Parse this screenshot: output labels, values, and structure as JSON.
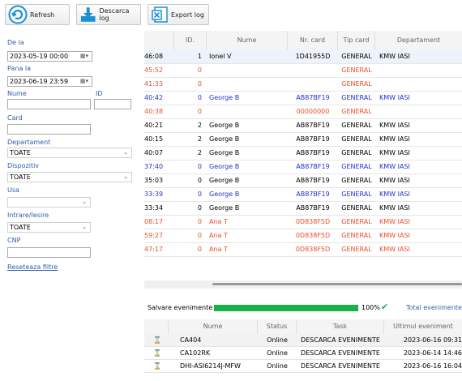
{
  "toolbar": {
    "refresh_label": "Refresh",
    "descarca_label": "Descarca log",
    "export_label": "Export log"
  },
  "filters": {
    "de_la_label": "De la",
    "de_la_value": "2023-05-19 00:00",
    "pana_la_label": "Pana la",
    "pana_la_value": "2023-06-19 23:59",
    "nume_label": "Nume",
    "nume_value": "",
    "id_label": "ID",
    "id_value": "",
    "card_label": "Card",
    "card_value": "",
    "departament_label": "Departament",
    "departament_value": "TOATE",
    "dispozitiv_label": "Dispozitiv",
    "dispozitiv_value": "TOATE",
    "usa_label": "Usa",
    "usa_value": "",
    "intrare_label": "Intrare/Iesire",
    "intrare_value": "TOATE",
    "cnp_label": "CNP",
    "cnp_value": "",
    "reset_label": "Reseteaza filtre"
  },
  "events_table": {
    "headers": [
      "",
      "ID.",
      "Nume",
      "Nr. card",
      "Tip card",
      "Departament"
    ],
    "rows": [
      {
        "time": "46:08",
        "id": "1",
        "name": "Ionel V",
        "card": "1D41955D",
        "type": "GENERAL",
        "dept": "KMW IASI",
        "color": "#000000"
      },
      {
        "time": "45:52",
        "id": "0",
        "name": "",
        "card": "",
        "type": "GENERAL",
        "dept": "",
        "color": "#e8502a"
      },
      {
        "time": "41:33",
        "id": "0",
        "name": "",
        "card": "",
        "type": "GENERAL",
        "dept": "",
        "color": "#e8502a"
      },
      {
        "time": "40:42",
        "id": "0",
        "name": "George B",
        "card": "AB87BF19",
        "type": "GENERAL",
        "dept": "KMW IASI",
        "color": "#2233cc"
      },
      {
        "time": "40:38",
        "id": "0",
        "name": "",
        "card": "00000000",
        "type": "GENERAL",
        "dept": "",
        "color": "#e8502a"
      },
      {
        "time": "40:21",
        "id": "2",
        "name": "George B",
        "card": "AB87BF19",
        "type": "GENERAL",
        "dept": "KMW IASI",
        "color": "#000000"
      },
      {
        "time": "40:15",
        "id": "2",
        "name": "George B",
        "card": "AB87BF19",
        "type": "GENERAL",
        "dept": "KMW IASI",
        "color": "#000000"
      },
      {
        "time": "40:07",
        "id": "2",
        "name": "George B",
        "card": "AB87BF19",
        "type": "GENERAL",
        "dept": "KMW IASI",
        "color": "#000000"
      },
      {
        "time": "37:40",
        "id": "0",
        "name": "George B",
        "card": "AB87BF19",
        "type": "GENERAL",
        "dept": "KMW IASI",
        "color": "#2233cc"
      },
      {
        "time": "35:03",
        "id": "0",
        "name": "George B",
        "card": "AB87BF19",
        "type": "GENERAL",
        "dept": "KMW IASI",
        "color": "#000000"
      },
      {
        "time": "33:39",
        "id": "0",
        "name": "George B",
        "card": "AB87BF19",
        "type": "GENERAL",
        "dept": "KMW IASI",
        "color": "#2233cc"
      },
      {
        "time": "33:34",
        "id": "0",
        "name": "George B",
        "card": "AB87BF19",
        "type": "GENERAL",
        "dept": "KMW IASI",
        "color": "#000000"
      },
      {
        "time": "08:17",
        "id": "0",
        "name": "Ana T",
        "card": "0D838F5D",
        "type": "GENERAL",
        "dept": "KMW IASI",
        "color": "#e8502a"
      },
      {
        "time": "59:27",
        "id": "0",
        "name": "Ana T",
        "card": "0D838F5D",
        "type": "GENERAL",
        "dept": "KMW IASI",
        "color": "#e8502a"
      },
      {
        "time": "47:17",
        "id": "0",
        "name": "Ana T",
        "card": "0D838F5D",
        "type": "GENERAL",
        "dept": "KMW IASI",
        "color": "#e8502a"
      }
    ]
  },
  "progress": {
    "label": "Salvare evenimente",
    "percent_text": "100%",
    "percent": 100,
    "total_label": "Total evenimente d",
    "bar_color": "#17b24a"
  },
  "devices_table": {
    "headers": [
      "",
      "Nume",
      "Status",
      "Task",
      "Ultimul eveniment"
    ],
    "rows": [
      {
        "name": "CA404",
        "status": "Online",
        "task": "DESCARCA EVENIMENTE",
        "last": "2023-06-16 09:31"
      },
      {
        "name": "CA102RK",
        "status": "Online",
        "task": "DESCARCA EVENIMENTE",
        "last": "2023-06-14 14:46"
      },
      {
        "name": "DHI-ASI6214J-MFW",
        "status": "Online",
        "task": "DESCARCA EVENIMENTE",
        "last": "2023-06-16 16:04"
      }
    ]
  },
  "colors": {
    "link_blue": "#2d5fa8",
    "denied_red": "#e8502a",
    "entry_blue": "#2233cc"
  }
}
